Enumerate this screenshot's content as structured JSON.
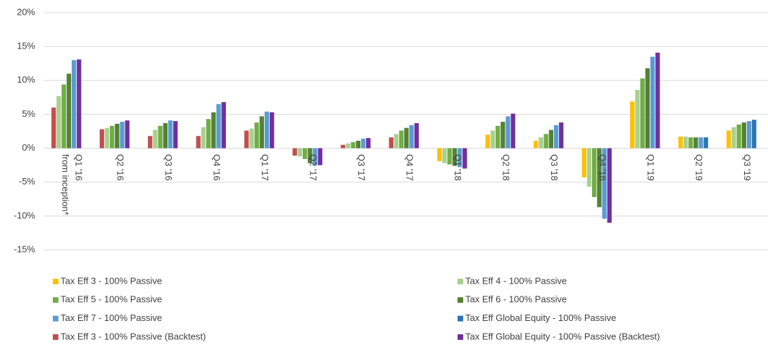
{
  "chart_data": {
    "type": "bar",
    "categories": [
      "Q1 '16\nfrom inception*",
      "Q2 '16",
      "Q3 '16",
      "Q4 '16",
      "Q1 '17",
      "Q2 '17",
      "Q3 '17",
      "Q4 '17",
      "Q1 '18",
      "Q2 '18",
      "Q3 '18",
      "Q4 '18",
      "Q1 '19",
      "Q2 '19",
      "Q3 '19"
    ],
    "series": [
      {
        "name": "Tax Eff 3 - 100% Passive",
        "color": "#ffc000",
        "values": [
          null,
          null,
          null,
          null,
          null,
          null,
          null,
          null,
          -1.9,
          2.0,
          1.1,
          -4.3,
          6.9,
          1.7,
          2.6
        ]
      },
      {
        "name": "Tax Eff 4 - 100% Passive",
        "color": "#a9d18e",
        "values": [
          7.7,
          3.0,
          2.7,
          3.1,
          2.9,
          -1.2,
          0.7,
          2.1,
          -2.2,
          2.6,
          1.6,
          -5.7,
          8.6,
          1.7,
          3.1
        ]
      },
      {
        "name": "Tax Eff 5 - 100% Passive",
        "color": "#70ad47",
        "values": [
          9.4,
          3.3,
          3.3,
          4.3,
          3.8,
          -1.6,
          0.9,
          2.6,
          -2.4,
          3.3,
          2.1,
          -7.2,
          10.3,
          1.6,
          3.5
        ]
      },
      {
        "name": "Tax Eff 6 - 100% Passive",
        "color": "#548235",
        "values": [
          11.0,
          3.6,
          3.7,
          5.3,
          4.7,
          -2.2,
          1.1,
          3.0,
          -2.6,
          3.9,
          2.7,
          -8.7,
          11.8,
          1.6,
          3.8
        ]
      },
      {
        "name": "Tax Eff 7 - 100% Passive",
        "color": "#5b9bd5",
        "values": [
          13.0,
          3.9,
          4.1,
          6.5,
          5.4,
          -2.5,
          1.4,
          3.4,
          -2.8,
          4.7,
          3.4,
          -10.4,
          13.5,
          1.6,
          4.0
        ]
      },
      {
        "name": "Tax Eff Global Equity - 100% Passive",
        "color": "#2e75b6",
        "values": [
          null,
          null,
          null,
          null,
          null,
          null,
          null,
          null,
          null,
          null,
          null,
          null,
          null,
          1.6,
          4.2
        ]
      },
      {
        "name": "Tax Eff 3 - 100% Passive (Backtest)",
        "color": "#c0504d",
        "values": [
          6.0,
          2.8,
          1.8,
          1.8,
          2.6,
          -1.1,
          0.5,
          1.6,
          null,
          null,
          null,
          null,
          null,
          null,
          null
        ]
      },
      {
        "name": "Tax Eff Global Equity - 100% Passive (Backtest)",
        "color": "#7030a0",
        "values": [
          13.1,
          4.1,
          4.0,
          6.8,
          5.3,
          -2.5,
          1.5,
          3.7,
          -3.0,
          5.1,
          3.8,
          -11.0,
          14.1,
          null,
          null
        ]
      }
    ],
    "ylim": [
      -15,
      20
    ],
    "yticks": [
      {
        "value": -15,
        "label": "-15%"
      },
      {
        "value": -10,
        "label": "-10%"
      },
      {
        "value": -5,
        "label": "-5%"
      },
      {
        "value": 0,
        "label": "0%"
      },
      {
        "value": 5,
        "label": "5%"
      },
      {
        "value": 10,
        "label": "10%"
      },
      {
        "value": 15,
        "label": "15%"
      },
      {
        "value": 20,
        "label": "20%"
      }
    ],
    "grid": true
  }
}
